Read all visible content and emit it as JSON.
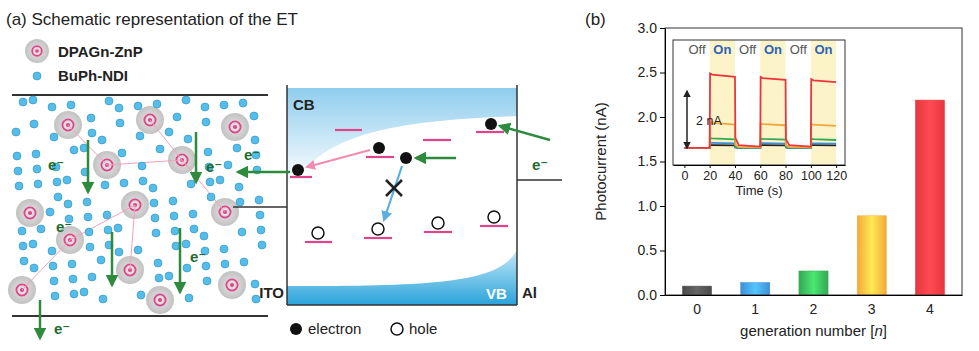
{
  "diagram": {
    "title": "(a) Schematic representation of the ET",
    "species": [
      "DPAGn-ZnP",
      "BuPh-NDI"
    ],
    "electron_label": "e⁻",
    "bands": [
      "CB",
      "VB"
    ],
    "electrodes": [
      "ITO",
      "Al"
    ],
    "carriers": [
      "electron",
      "hole"
    ]
  },
  "chart_data": [
    {
      "type": "bar",
      "title": "(b)",
      "categories": [
        "0",
        "1",
        "2",
        "3",
        "4"
      ],
      "values": [
        0.1,
        0.14,
        0.27,
        0.89,
        2.19
      ],
      "colors": [
        "#4a4a4a",
        "#3d8fd6",
        "#35a853",
        "#f2a93b",
        "#e8363c"
      ],
      "xlabel": "generation number [n]",
      "ylabel": "Photocurrent (nA)",
      "ylim": [
        0,
        3
      ],
      "yticks": [
        {
          "value": 0,
          "label": "0.0"
        },
        0.5,
        {
          "value": 1,
          "label": "1.0"
        },
        1.5,
        {
          "value": 2,
          "label": "2.0"
        },
        2.5,
        {
          "value": 3,
          "label": "3.0"
        }
      ]
    },
    {
      "type": "line",
      "x": [
        0,
        20,
        20.3,
        22,
        40,
        40.3,
        43,
        60,
        60.3,
        62,
        80,
        80.3,
        83,
        100,
        100.3,
        102,
        120
      ],
      "series": [
        {
          "color": "#222222",
          "values": [
            0,
            0,
            0.1,
            0.1,
            0.09,
            0.02,
            0,
            0,
            0.1,
            0.1,
            0.09,
            0.02,
            0,
            0,
            0.1,
            0.1,
            0.09
          ]
        },
        {
          "color": "#3d8fd6",
          "values": [
            0,
            0,
            0.18,
            0.18,
            0.16,
            0.03,
            0.01,
            0,
            0.17,
            0.17,
            0.15,
            0.03,
            0.01,
            0,
            0.16,
            0.16,
            0.15
          ]
        },
        {
          "color": "#35a853",
          "values": [
            0,
            0,
            0.35,
            0.34,
            0.3,
            0.05,
            0.01,
            0.01,
            0.33,
            0.32,
            0.29,
            0.05,
            0.01,
            0.01,
            0.32,
            0.31,
            0.28
          ]
        },
        {
          "color": "#f2a93b",
          "values": [
            0,
            0,
            0.9,
            0.88,
            0.82,
            0.12,
            0.03,
            0.02,
            0.86,
            0.84,
            0.8,
            0.1,
            0.03,
            0.02,
            0.84,
            0.82,
            0.78
          ]
        },
        {
          "color": "#e8363c",
          "values": [
            0,
            0,
            2.62,
            2.58,
            2.5,
            0.35,
            0.1,
            0.05,
            2.5,
            2.46,
            2.4,
            0.3,
            0.1,
            0.05,
            2.42,
            2.38,
            2.32
          ]
        }
      ],
      "xlabel": "Time (s)",
      "xlim": [
        -9,
        127
      ],
      "xticks": [
        0,
        20,
        40,
        60,
        80,
        100,
        120
      ],
      "ylim": [
        -0.6,
        3.8
      ],
      "tick_labels": "x",
      "periods": [
        {
          "label": "Off",
          "start": 0,
          "end": 20
        },
        {
          "label": "On",
          "start": 20,
          "end": 40,
          "color": "#fdf3c9"
        },
        {
          "label": "Off",
          "start": 40,
          "end": 60
        },
        {
          "label": "On",
          "start": 60,
          "end": 80,
          "color": "#fdf3c9"
        },
        {
          "label": "Off",
          "start": 80,
          "end": 100
        },
        {
          "label": "On",
          "start": 100,
          "end": 120,
          "color": "#fdf3c9"
        }
      ],
      "scale_bar": {
        "value": 2,
        "label": "2 nA"
      }
    }
  ]
}
